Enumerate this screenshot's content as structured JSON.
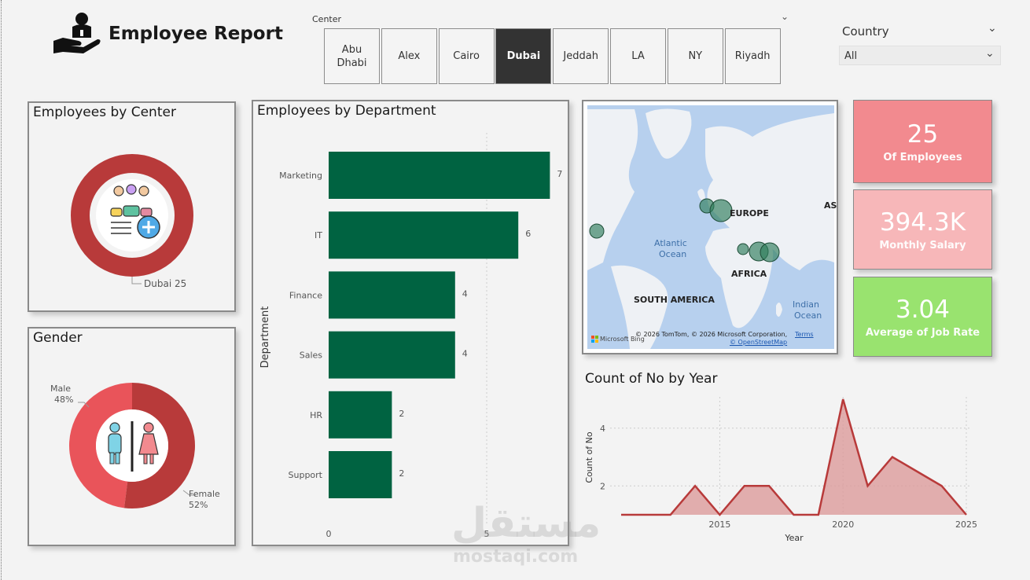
{
  "header": {
    "title": "Employee Report",
    "center_label": "Center",
    "centers": [
      "Abu Dhabi",
      "Alex",
      "Cairo",
      "Dubai",
      "Jeddah",
      "LA",
      "NY",
      "Riyadh"
    ],
    "selected_center": "Dubai",
    "country_label": "Country",
    "country_value": "All"
  },
  "employees_by_center": {
    "title": "Employees by Center",
    "label": "Dubai 25",
    "color": "#b83a3a"
  },
  "gender": {
    "title": "Gender",
    "male_label": "Male",
    "male_pct": "48%",
    "female_label": "Female",
    "female_pct": "52%",
    "male_color": "#e9545a",
    "female_color": "#b83a3a"
  },
  "department_chart": {
    "title": "Employees by Department",
    "ylabel": "Department",
    "x_ticks": [
      "0",
      "5"
    ],
    "bar_color": "#006341"
  },
  "map": {
    "labels": [
      "EUROPE",
      "AS",
      "AFRICA",
      "SOUTH AMERICA",
      "Atlantic",
      "Ocean",
      "Indian",
      "Ocean"
    ],
    "attribution": "© 2026 TomTom, © 2026 Microsoft Corporation,",
    "terms": "Terms",
    "osm": "© OpenStreetMap",
    "bing": "Microsoft Bing"
  },
  "kpis": {
    "employees_value": "25",
    "employees_label": "Of Employees",
    "salary_value": "394.3K",
    "salary_label": "Monthly Salary",
    "jobrate_value": "3.04",
    "jobrate_label": "Average of Job Rate",
    "colors": {
      "employees": "#f28a8f",
      "salary": "#f7b7b9",
      "jobrate": "#99e36f"
    }
  },
  "year_chart": {
    "title": "Count of No by Year",
    "xlabel": "Year",
    "ylabel": "Count of No",
    "y_ticks": [
      "2",
      "4"
    ],
    "x_ticks": [
      "2015",
      "2020",
      "2025"
    ],
    "line_color": "#b83a3a"
  },
  "watermark": {
    "arabic": "مستقل",
    "latin": "mostaqi.com"
  },
  "chart_data": [
    {
      "type": "bar",
      "title": "Employees by Department",
      "ylabel": "Department",
      "categories": [
        "Marketing",
        "IT",
        "Finance",
        "Sales",
        "HR",
        "Support"
      ],
      "values": [
        7,
        6,
        4,
        4,
        2,
        2
      ],
      "xlim": [
        0,
        7
      ]
    },
    {
      "type": "area",
      "title": "Count of No by Year",
      "xlabel": "Year",
      "ylabel": "Count of No",
      "x": [
        2011,
        2012,
        2013,
        2014,
        2015,
        2016,
        2017,
        2018,
        2019,
        2020,
        2021,
        2022,
        2023,
        2024,
        2025
      ],
      "values": [
        1,
        1,
        1,
        2,
        1,
        2,
        2,
        1,
        1,
        5,
        2,
        3,
        2.5,
        2,
        1
      ],
      "xlim": [
        2011,
        2025
      ],
      "ylim": [
        1,
        5
      ]
    },
    {
      "type": "pie",
      "title": "Gender",
      "categories": [
        "Male",
        "Female"
      ],
      "values": [
        48,
        52
      ]
    },
    {
      "type": "pie",
      "title": "Employees by Center",
      "categories": [
        "Dubai"
      ],
      "values": [
        25
      ]
    }
  ]
}
